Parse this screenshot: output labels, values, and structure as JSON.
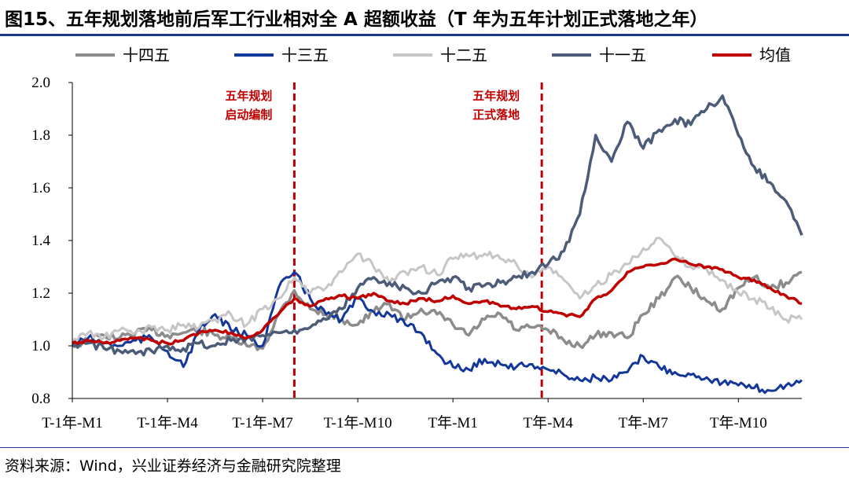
{
  "title": "图15、五年规划落地前后军工行业相对全 A 超额收益（T 年为五年计划正式落地之年）",
  "source": "资料来源：Wind，兴业证券经济与金融研究院整理",
  "colors": {
    "rule": "#1b3b8a",
    "axis": "#000000",
    "annotation": "#c00000"
  },
  "chart_data": {
    "type": "line",
    "title": "图15、五年规划落地前后军工行业相对全 A 超额收益（T 年为五年计划正式落地之年）",
    "xlabel": "",
    "ylabel": "",
    "ylim": [
      0.8,
      2.0
    ],
    "yticks": [
      0.8,
      1.0,
      1.2,
      1.4,
      1.6,
      1.8,
      2.0
    ],
    "ytick_labels": [
      "0.8",
      "1.0",
      "1.2",
      "1.4",
      "1.6",
      "1.8",
      "2.0"
    ],
    "xlim": [
      0,
      23
    ],
    "xticks": [
      0,
      3,
      6,
      9,
      12,
      15,
      18,
      21
    ],
    "xtick_labels": [
      "T-1年-M1",
      "T-1年-M4",
      "T-1年-M7",
      "T-1年-M10",
      "T年-M1",
      "T年-M4",
      "T年-M7",
      "T年-M10"
    ],
    "legend_position": "top",
    "annotations": [
      {
        "x": 7.0,
        "lines": [
          "五年规划",
          "启动编制"
        ],
        "color": "#c00000"
      },
      {
        "x": 14.8,
        "lines": [
          "五年规划",
          "正式落地"
        ],
        "color": "#c00000"
      }
    ],
    "series": [
      {
        "name": "十四五",
        "color": "#8c8c8c",
        "width": 3.5,
        "x": [
          0,
          0.5,
          1,
          1.5,
          2,
          2.5,
          3,
          3.5,
          4,
          4.5,
          5,
          5.5,
          6,
          6.5,
          7,
          7.5,
          8,
          8.5,
          9,
          9.5,
          10,
          10.5,
          11,
          11.5,
          12,
          12.5,
          13,
          13.5,
          14,
          14.5,
          15,
          15.5,
          16,
          16.5,
          17,
          17.5,
          18,
          18.5,
          19,
          19.5,
          20,
          20.5,
          21,
          21.5,
          22,
          22.5,
          23
        ],
        "y": [
          1.0,
          1.02,
          1.04,
          1.03,
          1.05,
          1.06,
          1.04,
          1.05,
          1.06,
          1.04,
          1.03,
          1.0,
          0.99,
          1.12,
          1.21,
          1.14,
          1.12,
          1.1,
          1.08,
          1.13,
          1.16,
          1.1,
          1.14,
          1.12,
          1.08,
          1.04,
          1.1,
          1.12,
          1.06,
          1.07,
          1.06,
          1.02,
          1.0,
          1.04,
          1.05,
          1.03,
          1.12,
          1.18,
          1.26,
          1.22,
          1.17,
          1.14,
          1.22,
          1.26,
          1.22,
          1.24,
          1.28
        ]
      },
      {
        "name": "十三五",
        "color": "#14389a",
        "width": 3.0,
        "x": [
          0,
          0.5,
          1,
          1.5,
          2,
          2.5,
          3,
          3.5,
          4,
          4.5,
          5,
          5.5,
          6,
          6.5,
          7,
          7.5,
          8,
          8.5,
          9,
          9.5,
          10,
          10.5,
          11,
          11.5,
          12,
          12.5,
          13,
          13.5,
          14,
          14.5,
          15,
          15.5,
          16,
          16.5,
          17,
          17.5,
          18,
          18.5,
          19,
          19.5,
          20,
          20.5,
          21,
          21.5,
          22,
          22.5,
          23
        ],
        "y": [
          1.0,
          1.03,
          1.01,
          1.0,
          1.02,
          1.03,
          0.98,
          0.92,
          1.06,
          1.12,
          1.06,
          1.04,
          1.0,
          1.22,
          1.28,
          1.18,
          1.12,
          1.1,
          1.18,
          1.13,
          1.12,
          1.08,
          1.05,
          0.97,
          0.92,
          0.91,
          0.95,
          0.93,
          0.92,
          0.93,
          0.91,
          0.89,
          0.87,
          0.88,
          0.87,
          0.9,
          0.96,
          0.92,
          0.9,
          0.89,
          0.88,
          0.86,
          0.85,
          0.84,
          0.83,
          0.85,
          0.87
        ]
      },
      {
        "name": "十二五",
        "color": "#c6c6c6",
        "width": 3.0,
        "x": [
          0,
          0.5,
          1,
          1.5,
          2,
          2.5,
          3,
          3.5,
          4,
          4.5,
          5,
          5.5,
          6,
          6.5,
          7,
          7.5,
          8,
          8.5,
          9,
          9.5,
          10,
          10.5,
          11,
          11.5,
          12,
          12.5,
          13,
          13.5,
          14,
          14.5,
          15,
          15.5,
          16,
          16.5,
          17,
          17.5,
          18,
          18.5,
          19,
          19.5,
          20,
          20.5,
          21,
          21.5,
          22,
          22.5,
          23
        ],
        "y": [
          1.02,
          1.05,
          1.03,
          1.06,
          1.05,
          1.07,
          1.06,
          1.08,
          1.07,
          1.1,
          1.12,
          1.08,
          1.14,
          1.18,
          1.26,
          1.2,
          1.22,
          1.28,
          1.35,
          1.3,
          1.24,
          1.28,
          1.3,
          1.27,
          1.33,
          1.34,
          1.35,
          1.33,
          1.31,
          1.26,
          1.3,
          1.25,
          1.18,
          1.23,
          1.27,
          1.31,
          1.37,
          1.41,
          1.34,
          1.3,
          1.29,
          1.25,
          1.2,
          1.18,
          1.14,
          1.1,
          1.1
        ]
      },
      {
        "name": "十一五",
        "color": "#4c5c78",
        "width": 3.5,
        "x": [
          0,
          0.5,
          1,
          1.5,
          2,
          2.5,
          3,
          3.5,
          4,
          4.5,
          5,
          5.5,
          6,
          6.5,
          7,
          7.5,
          8,
          8.5,
          9,
          9.5,
          10,
          10.5,
          11,
          11.5,
          12,
          12.5,
          13,
          13.5,
          14,
          14.5,
          15,
          15.5,
          16,
          16.5,
          17,
          17.5,
          18,
          18.5,
          19,
          19.5,
          20,
          20.5,
          21,
          21.5,
          22,
          22.5,
          23
        ],
        "y": [
          1.0,
          1.01,
          0.99,
          0.98,
          0.97,
          0.98,
          1.0,
          0.99,
          1.01,
          1.0,
          1.02,
          1.03,
          1.04,
          1.05,
          1.06,
          1.07,
          1.1,
          1.14,
          1.22,
          1.26,
          1.24,
          1.22,
          1.2,
          1.24,
          1.26,
          1.22,
          1.23,
          1.24,
          1.26,
          1.28,
          1.31,
          1.36,
          1.5,
          1.8,
          1.7,
          1.85,
          1.75,
          1.82,
          1.86,
          1.84,
          1.9,
          1.95,
          1.8,
          1.68,
          1.62,
          1.55,
          1.42
        ]
      },
      {
        "name": "均值",
        "color": "#c00000",
        "width": 3.5,
        "x": [
          0,
          0.5,
          1,
          1.5,
          2,
          2.5,
          3,
          3.5,
          4,
          4.5,
          5,
          5.5,
          6,
          6.5,
          7,
          7.5,
          8,
          8.5,
          9,
          9.5,
          10,
          10.5,
          11,
          11.5,
          12,
          12.5,
          13,
          13.5,
          14,
          14.5,
          15,
          15.5,
          16,
          16.5,
          17,
          17.5,
          18,
          18.5,
          19,
          19.5,
          20,
          20.5,
          21,
          21.5,
          22,
          22.5,
          23
        ],
        "y": [
          1.01,
          1.02,
          1.01,
          1.02,
          1.03,
          1.02,
          1.01,
          1.02,
          1.05,
          1.06,
          1.05,
          1.03,
          1.06,
          1.12,
          1.18,
          1.15,
          1.18,
          1.19,
          1.18,
          1.2,
          1.17,
          1.16,
          1.18,
          1.17,
          1.19,
          1.16,
          1.17,
          1.15,
          1.14,
          1.15,
          1.13,
          1.12,
          1.11,
          1.18,
          1.21,
          1.28,
          1.3,
          1.31,
          1.33,
          1.31,
          1.3,
          1.29,
          1.26,
          1.25,
          1.22,
          1.19,
          1.16
        ]
      }
    ]
  }
}
